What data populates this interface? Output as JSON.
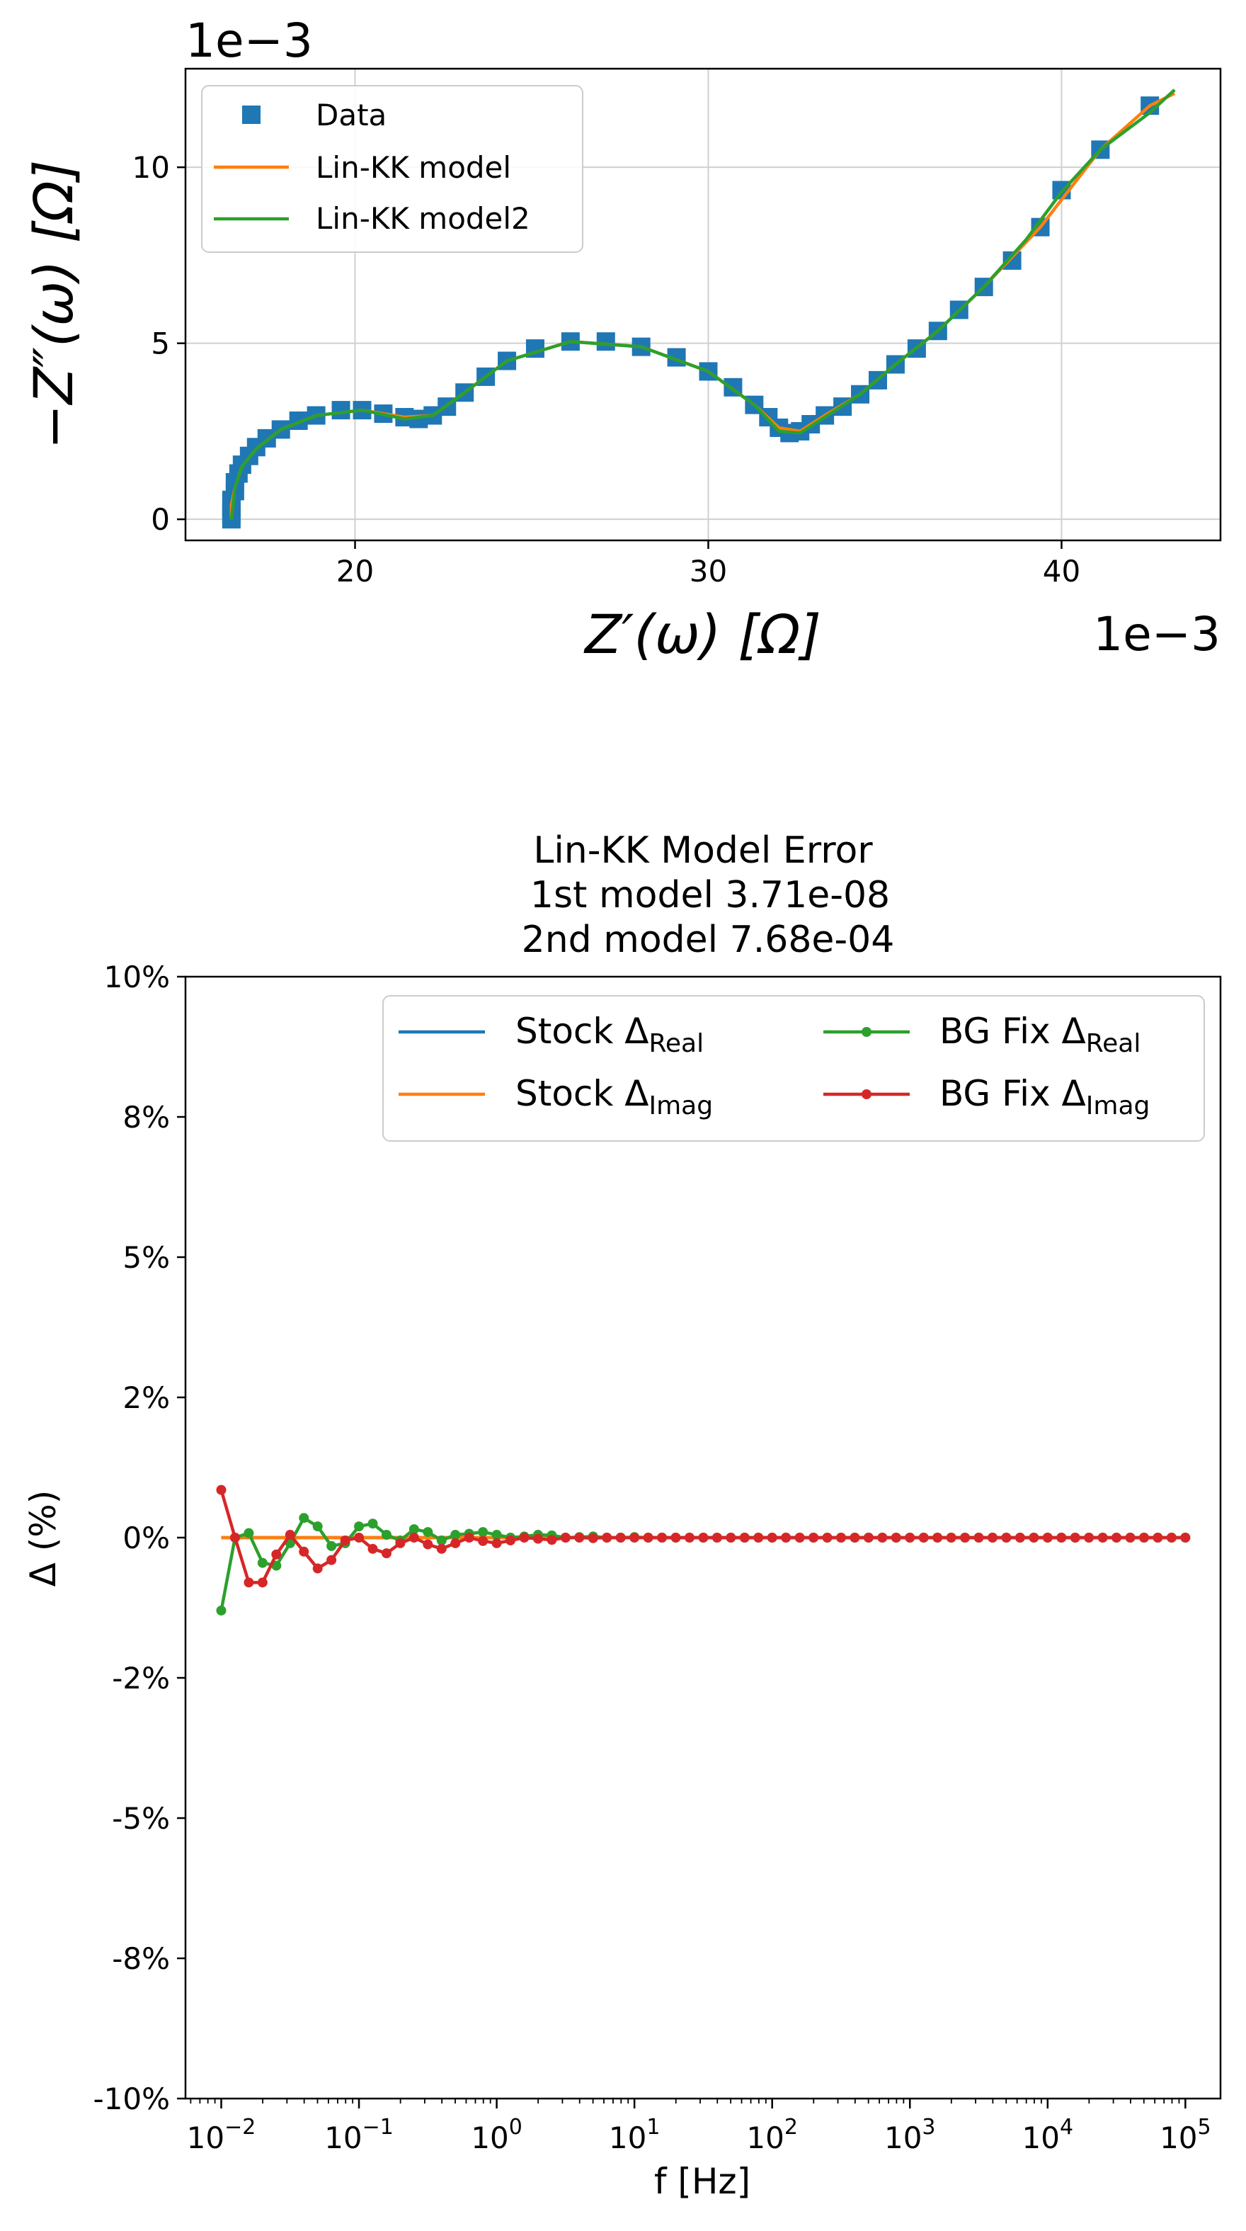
{
  "chart_data": [
    {
      "type": "scatter",
      "xlabel": "Z′(ω) [Ω]",
      "ylabel": "−Z″(ω) [Ω]",
      "x_offset_label": "1e−3",
      "y_offset_label": "1e−3",
      "xlim": [
        15.2,
        44.5
      ],
      "ylim": [
        -0.6,
        12.8
      ],
      "xticks": [
        20,
        30,
        40
      ],
      "yticks": [
        0,
        5,
        10
      ],
      "grid": true,
      "legend_position": "top-left",
      "legend": [
        "Data",
        "Lin-KK model",
        "Lin-KK model2"
      ],
      "series": [
        {
          "name": "Data",
          "color": "#1f77b4",
          "marker": "square",
          "x": [
            16.5,
            16.5,
            16.5,
            16.5,
            16.6,
            16.6,
            16.7,
            16.8,
            17.0,
            17.2,
            17.5,
            17.9,
            18.4,
            18.9,
            19.6,
            20.2,
            20.8,
            21.4,
            21.8,
            22.2,
            22.6,
            23.1,
            23.7,
            24.3,
            25.1,
            26.1,
            27.1,
            28.1,
            29.1,
            30.0,
            30.7,
            31.3,
            31.7,
            32.0,
            32.3,
            32.6,
            32.9,
            33.3,
            33.8,
            34.3,
            34.8,
            35.3,
            35.9,
            36.5,
            37.1,
            37.8,
            38.6,
            39.4,
            40.0,
            41.1,
            42.5
          ],
          "y": [
            0.0,
            0.15,
            0.35,
            0.55,
            0.8,
            1.05,
            1.3,
            1.55,
            1.8,
            2.05,
            2.3,
            2.55,
            2.8,
            2.95,
            3.1,
            3.1,
            3.0,
            2.9,
            2.85,
            2.95,
            3.2,
            3.6,
            4.05,
            4.5,
            4.85,
            5.05,
            5.05,
            4.9,
            4.6,
            4.2,
            3.75,
            3.25,
            2.9,
            2.6,
            2.45,
            2.5,
            2.7,
            2.95,
            3.2,
            3.55,
            3.95,
            4.4,
            4.85,
            5.35,
            5.95,
            6.6,
            7.35,
            8.3,
            9.35,
            10.5,
            11.75
          ]
        },
        {
          "name": "Lin-KK model",
          "color": "#ff7f0e",
          "x": [
            16.5,
            16.5,
            16.6,
            16.8,
            17.2,
            17.9,
            18.9,
            20.2,
            21.4,
            22.2,
            23.1,
            24.3,
            26.1,
            28.1,
            30.0,
            31.3,
            32.0,
            32.6,
            33.3,
            34.3,
            35.3,
            36.5,
            37.8,
            39.4,
            41.1,
            42.5,
            43.2
          ],
          "y": [
            0.0,
            0.4,
            0.9,
            1.5,
            2.0,
            2.55,
            2.95,
            3.1,
            2.9,
            2.95,
            3.6,
            4.5,
            5.05,
            4.9,
            4.2,
            3.25,
            2.6,
            2.5,
            2.95,
            3.55,
            4.4,
            5.35,
            6.6,
            8.3,
            10.5,
            11.75,
            12.1
          ]
        },
        {
          "name": "Lin-KK model2",
          "color": "#2ca02c",
          "x": [
            16.5,
            16.6,
            16.8,
            17.2,
            17.9,
            18.9,
            20.2,
            21.4,
            22.2,
            23.1,
            24.3,
            26.1,
            28.1,
            30.0,
            31.3,
            32.0,
            32.6,
            33.3,
            34.3,
            35.3,
            36.5,
            37.8,
            39.0,
            40.0,
            41.1,
            42.5,
            43.2
          ],
          "y": [
            0.0,
            0.9,
            1.5,
            2.0,
            2.55,
            2.95,
            3.1,
            2.85,
            2.95,
            3.6,
            4.5,
            5.05,
            4.9,
            4.2,
            3.25,
            2.5,
            2.45,
            2.9,
            3.55,
            4.4,
            5.35,
            6.6,
            7.95,
            9.3,
            10.5,
            11.55,
            12.2
          ]
        }
      ]
    },
    {
      "type": "line",
      "title_lines": [
        "Lin-KK Model Error",
        "1st model 3.71e-08",
        "2nd model 7.68e-04"
      ],
      "xlabel": "f [Hz]",
      "ylabel": "Δ (%)",
      "xscale": "log",
      "xlim": [
        0.0055,
        180000
      ],
      "ylim": [
        -10,
        10
      ],
      "yticks": [
        10,
        7.5,
        5,
        2.5,
        0,
        -2.5,
        -5,
        -7.5,
        -10
      ],
      "ytick_labels": [
        "10%",
        "8%",
        "5%",
        "2%",
        "0%",
        "-2%",
        "-5%",
        "-8%",
        "-10%"
      ],
      "xticks": [
        "10^-2",
        "10^-1",
        "10^0",
        "10^1",
        "10^2",
        "10^3",
        "10^4",
        "10^5"
      ],
      "grid": false,
      "legend_position": "top-right",
      "legend": [
        {
          "base": "Stock Δ",
          "sub": "Real"
        },
        {
          "base": "Stock Δ",
          "sub": "Imag"
        },
        {
          "base": "BG Fix Δ",
          "sub": "Real"
        },
        {
          "base": "BG Fix Δ",
          "sub": "Imag"
        }
      ],
      "log10_f": [
        -2.0,
        -1.9,
        -1.8,
        -1.7,
        -1.6,
        -1.5,
        -1.4,
        -1.3,
        -1.2,
        -1.1,
        -1.0,
        -0.9,
        -0.8,
        -0.7,
        -0.6,
        -0.5,
        -0.4,
        -0.3,
        -0.2,
        -0.1,
        0.0,
        0.1,
        0.2,
        0.3,
        0.4,
        0.5,
        0.6,
        0.7,
        0.8,
        0.9,
        1.0,
        1.1,
        1.2,
        1.3,
        1.4,
        1.5,
        1.6,
        1.7,
        1.8,
        1.9,
        2.0,
        2.1,
        2.2,
        2.3,
        2.4,
        2.5,
        2.6,
        2.7,
        2.8,
        2.9,
        3.0,
        3.1,
        3.2,
        3.3,
        3.4,
        3.5,
        3.6,
        3.7,
        3.8,
        3.9,
        4.0,
        4.1,
        4.2,
        4.3,
        4.4,
        4.5,
        4.6,
        4.7,
        4.8,
        4.9,
        5.0
      ],
      "series": [
        {
          "name": "Stock Δ Real",
          "color": "#1f77b4",
          "marker": "none",
          "constant": 0
        },
        {
          "name": "Stock Δ Imag",
          "color": "#ff7f0e",
          "marker": "none",
          "constant": 0
        },
        {
          "name": "BG Fix Δ Real",
          "color": "#2ca02c",
          "marker": "dot",
          "values": [
            -1.3,
            0.0,
            0.08,
            -0.45,
            -0.5,
            -0.1,
            0.35,
            0.2,
            -0.15,
            -0.1,
            0.2,
            0.25,
            0.05,
            -0.05,
            0.15,
            0.1,
            -0.05,
            0.05,
            0.07,
            0.1,
            0.05,
            0.0,
            0.02,
            0.05,
            0.04,
            0.0,
            0.01,
            0.02,
            0.0,
            0.0,
            0.01,
            0.0,
            0.0,
            0.0,
            0.0,
            0.0,
            0.0,
            0.0,
            0.0,
            0.0,
            0.0,
            0.0,
            0.0,
            0.0,
            0.0,
            0.0,
            0.0,
            0.0,
            0.0,
            0.0,
            0.0,
            0.0,
            0.0,
            0.0,
            0.0,
            0.0,
            0.0,
            0.0,
            0.0,
            0.0,
            0.0,
            0.0,
            0.0,
            0.0,
            0.0,
            0.0,
            0.0,
            0.0,
            0.0,
            0.0,
            0.0
          ]
        },
        {
          "name": "BG Fix Δ Imag",
          "color": "#d62728",
          "marker": "dot",
          "values": [
            0.85,
            0.0,
            -0.8,
            -0.8,
            -0.3,
            0.05,
            -0.25,
            -0.55,
            -0.4,
            -0.05,
            0.0,
            -0.2,
            -0.28,
            -0.1,
            0.0,
            -0.12,
            -0.2,
            -0.1,
            0.0,
            -0.06,
            -0.1,
            -0.05,
            0.0,
            -0.02,
            -0.04,
            0.0,
            0.0,
            -0.01,
            0.0,
            0.0,
            0.0,
            0.0,
            0.0,
            0.0,
            0.0,
            0.0,
            0.0,
            0.0,
            0.0,
            0.0,
            0.0,
            0.0,
            0.0,
            0.0,
            0.0,
            0.0,
            0.0,
            0.0,
            0.0,
            0.0,
            0.0,
            0.0,
            0.0,
            0.0,
            0.0,
            0.0,
            0.0,
            0.0,
            0.0,
            0.0,
            0.0,
            0.0,
            0.0,
            0.0,
            0.0,
            0.0,
            0.0,
            0.0,
            0.0,
            0.0,
            0.0
          ]
        }
      ]
    }
  ]
}
